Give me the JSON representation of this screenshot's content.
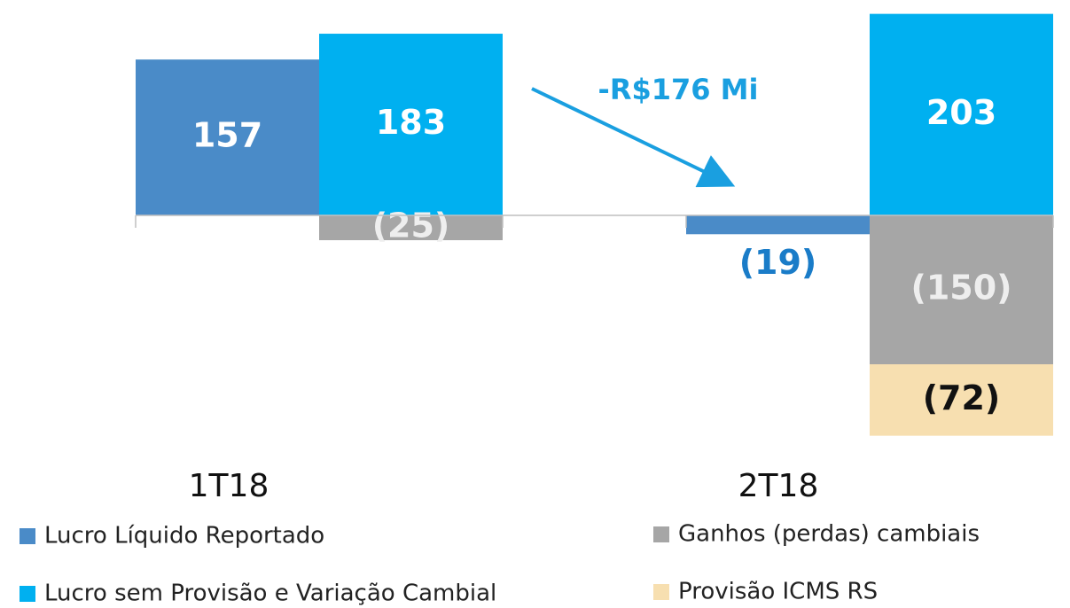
{
  "chart_data": {
    "type": "bar",
    "categories": [
      "1T18",
      "2T18"
    ],
    "series": [
      {
        "name": "Lucro Líquido Reportado",
        "color": "#4a8bc8",
        "values": [
          157,
          -19
        ],
        "value_labels": [
          "157",
          "(19)"
        ]
      },
      {
        "name": "Lucro sem Provisão e Variação Cambial",
        "color": "#00b0f0",
        "values": [
          183,
          203
        ],
        "value_labels": [
          "183",
          "203"
        ]
      },
      {
        "name": "Ganhos (perdas) cambiais",
        "color": "#a6a6a6",
        "values": [
          -25,
          -150
        ],
        "value_labels": [
          "(25)",
          "(150)"
        ]
      },
      {
        "name": "Provisão ICMS RS",
        "color": "#f7dfb0",
        "values": [
          null,
          -72
        ],
        "value_labels": [
          null,
          "(72)"
        ]
      }
    ],
    "annotation": "-R$176 Mi"
  }
}
